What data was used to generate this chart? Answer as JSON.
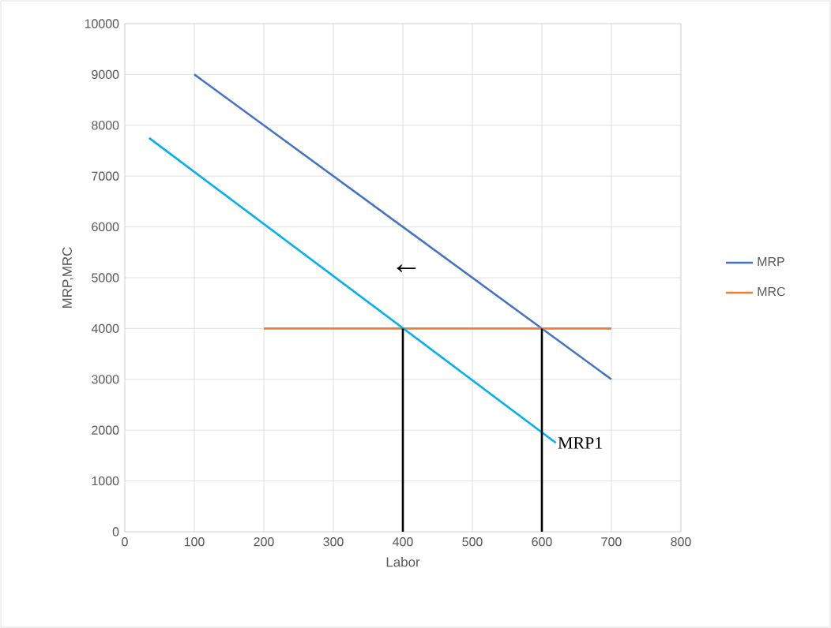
{
  "chart_data": {
    "type": "line",
    "xlabel": "Labor",
    "ylabel": "MRP,MRC",
    "xlim": [
      0,
      800
    ],
    "ylim": [
      0,
      10000
    ],
    "xticks": [
      0,
      100,
      200,
      300,
      400,
      500,
      600,
      700,
      800
    ],
    "yticks": [
      0,
      1000,
      2000,
      3000,
      4000,
      5000,
      6000,
      7000,
      8000,
      9000,
      10000
    ],
    "grid": true,
    "legend": "right",
    "line_style": "solid",
    "marker": "none",
    "series": [
      {
        "name": "MRP",
        "color": "#4472c4",
        "x": [
          100,
          700
        ],
        "values": [
          9000,
          3000
        ]
      },
      {
        "name": "MRC",
        "color": "#ed7d31",
        "x": [
          200,
          700
        ],
        "values": [
          4000,
          4000
        ]
      },
      {
        "color": "#00b0f0",
        "x": [
          35,
          620
        ],
        "values": [
          7750,
          1750
        ]
      },
      {
        "color": "#000000",
        "x": [
          400,
          400
        ],
        "values": [
          0,
          4000
        ]
      },
      {
        "color": "#000000",
        "x": [
          600,
          600
        ],
        "values": [
          0,
          4000
        ]
      }
    ],
    "annotations": [
      {
        "text": "MRP1",
        "x": 620,
        "y": 1750
      },
      "←"
    ]
  }
}
